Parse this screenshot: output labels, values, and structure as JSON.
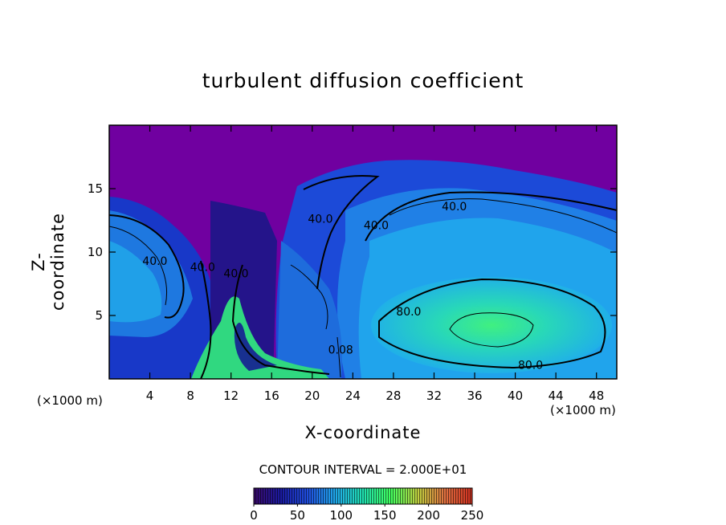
{
  "chart_data": {
    "type": "heatmap",
    "title": "turbulent diffusion coefficient",
    "xlabel": "X-coordinate",
    "ylabel": "Z-coordinate",
    "x_unit_left": "(×1000 m)",
    "x_unit_right": "(×1000 m)",
    "xlim": [
      0,
      50
    ],
    "ylim": [
      0,
      20
    ],
    "xticks": [
      4,
      8,
      12,
      16,
      20,
      24,
      28,
      32,
      36,
      40,
      44,
      48
    ],
    "yticks": [
      5,
      10,
      15
    ],
    "contour_interval_text": "CONTOUR INTERVAL = 2.000E+01",
    "contour_interval": 20,
    "colorbar": {
      "min": 0,
      "max": 250,
      "ticks": [
        0,
        50,
        100,
        150,
        200,
        250
      ],
      "colors": [
        "#3a0a6a",
        "#1a1aa0",
        "#2050e0",
        "#20a8e8",
        "#20e0b0",
        "#40ff60",
        "#c0d040",
        "#e07040",
        "#d03020"
      ]
    },
    "background_color": "#7000a0",
    "contour_labels": [
      {
        "text": "40.0",
        "x": 4.5,
        "z": 9.0
      },
      {
        "text": "40.0",
        "x": 9.2,
        "z": 8.5
      },
      {
        "text": "40.0",
        "x": 12.5,
        "z": 8.0
      },
      {
        "text": "40.0",
        "x": 20.8,
        "z": 12.3
      },
      {
        "text": "40.0",
        "x": 26.3,
        "z": 11.8
      },
      {
        "text": "40.0",
        "x": 34.0,
        "z": 13.3
      },
      {
        "text": "80.0",
        "x": 29.5,
        "z": 5.0
      },
      {
        "text": "80.0",
        "x": 41.5,
        "z": 0.8
      },
      {
        "text": "0.08",
        "x": 22.8,
        "z": 2.0
      }
    ]
  }
}
